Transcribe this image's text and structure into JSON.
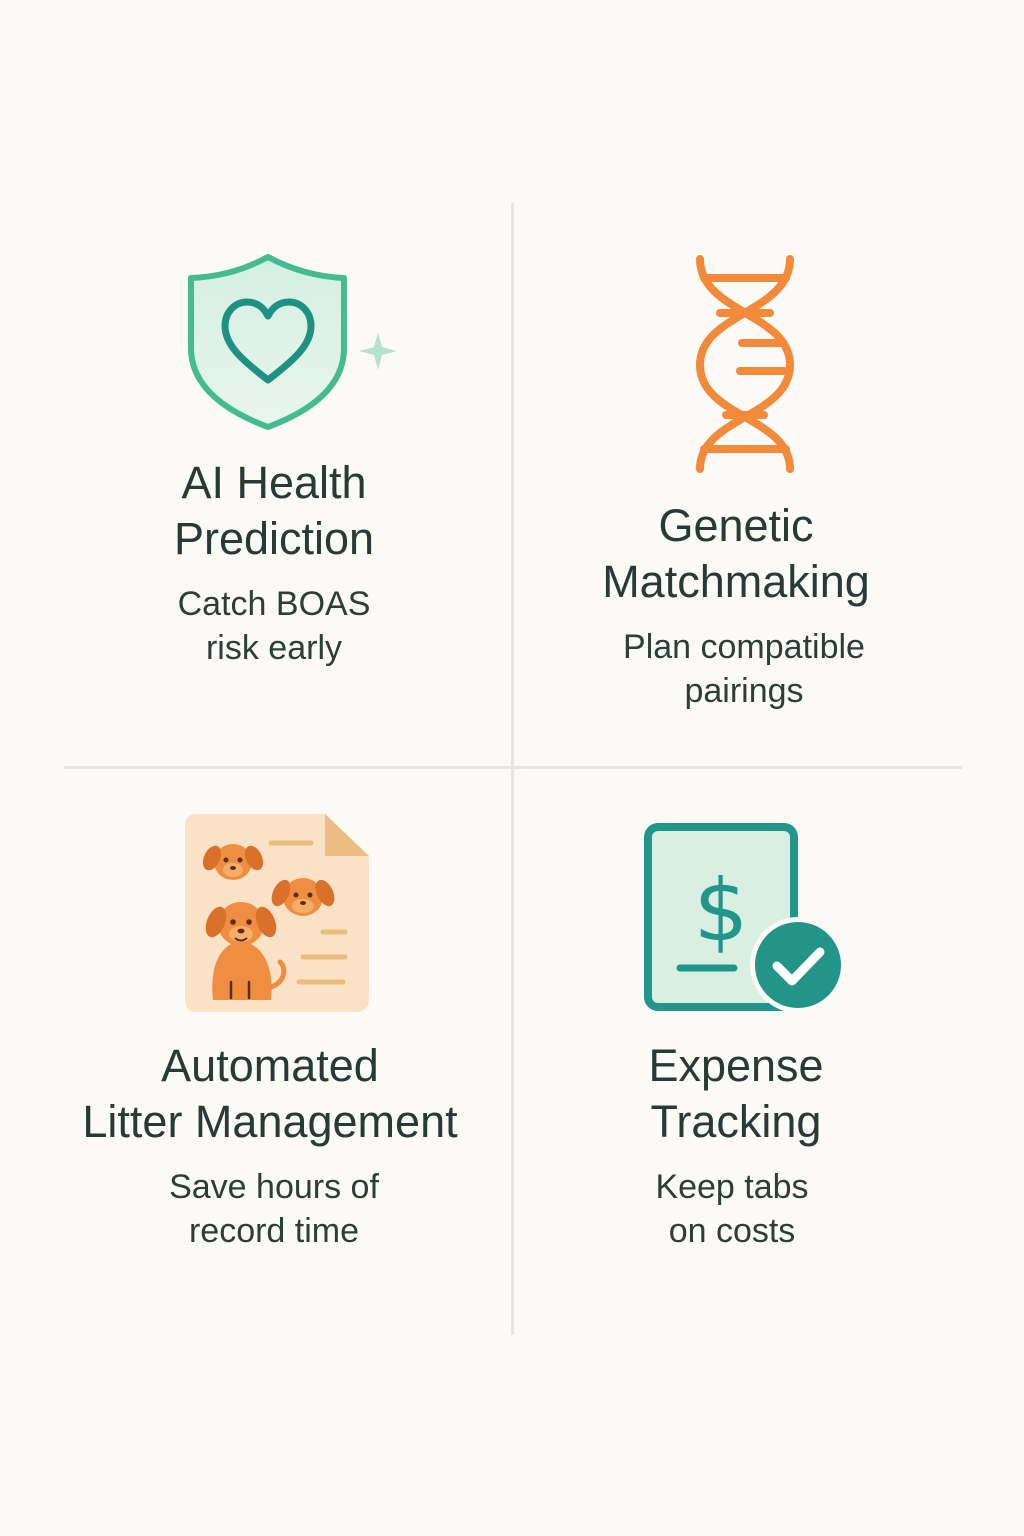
{
  "features": [
    {
      "icon": "shield-heart-icon",
      "title_lines": [
        "AI Health",
        "Prediction"
      ],
      "desc_lines": [
        "Catch BOAS",
        "risk early"
      ],
      "accent": "#3dbb93"
    },
    {
      "icon": "dna-icon",
      "title_lines": [
        "Genetic",
        "Matchmaking"
      ],
      "desc_lines": [
        "Plan compatible",
        "pairings"
      ],
      "accent": "#f28a3c"
    },
    {
      "icon": "puppy-document-icon",
      "title_lines": [
        "Automated",
        "Litter Management"
      ],
      "desc_lines": [
        "Save hours of",
        "record time"
      ],
      "accent": "#e98a3f"
    },
    {
      "icon": "expense-receipt-check-icon",
      "title_lines": [
        "Expense",
        "Tracking"
      ],
      "desc_lines": [
        "Keep tabs",
        "on costs"
      ],
      "accent": "#22968a"
    }
  ]
}
